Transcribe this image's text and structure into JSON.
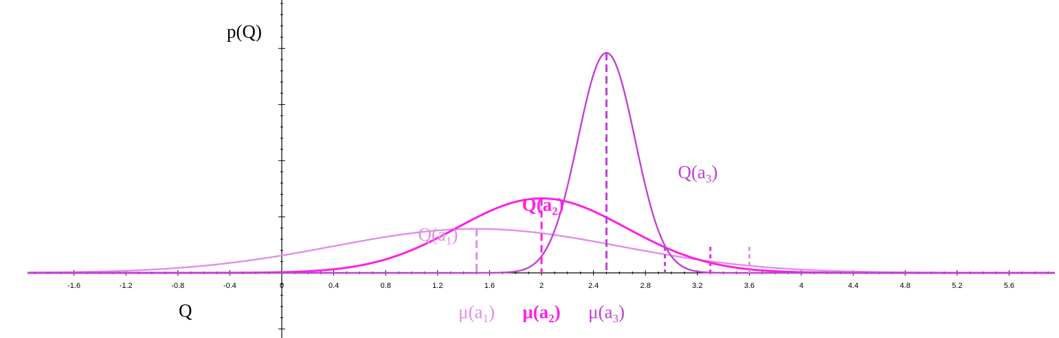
{
  "chart_data": {
    "type": "line",
    "ylabel": "p(Q)",
    "xlabel": "Q",
    "xlim": [
      -2,
      6
    ],
    "x_ticks": [
      "-1.6",
      "-1.2",
      "-0.8",
      "-0.4",
      "0",
      "0.4",
      "0.8",
      "1.2",
      "1.6",
      "2",
      "2.4",
      "2.8",
      "3.2",
      "3.6",
      "4",
      "4.4",
      "4.8",
      "5.2",
      "5.6"
    ],
    "series": [
      {
        "name": "Q(a1)",
        "label_base": "Q(a",
        "label_sub": "1",
        "label_end": ")",
        "mean": 1.5,
        "sd": 1.1,
        "mean_label_base": "μ(a",
        "mean_label_sub": "1",
        "mean_label_end": ")",
        "color": "#e08ee8",
        "bold": false,
        "extra_marker_x": 3.6,
        "label_x": 1.05,
        "label_y": 0.265
      },
      {
        "name": "Q(a2)",
        "label_base": "Q(a",
        "label_sub": "2",
        "label_end": ")",
        "mean": 2.0,
        "sd": 0.65,
        "mean_label_base": "μ(a",
        "mean_label_sub": "2",
        "mean_label_end": ")",
        "color": "#ff1ee8",
        "bold": true,
        "extra_marker_x": 3.3,
        "label_x": 1.85,
        "label_y": 0.51
      },
      {
        "name": "Q(a3)",
        "label_base": "Q(a",
        "label_sub": "3",
        "label_end": ")",
        "mean": 2.5,
        "sd": 0.22,
        "mean_label_base": "μ(a",
        "mean_label_sub": "3",
        "mean_label_end": ")",
        "color": "#c040d4",
        "bold": false,
        "extra_marker_x": 2.95,
        "label_x": 3.05,
        "label_y": 0.78
      }
    ],
    "grid": false
  }
}
